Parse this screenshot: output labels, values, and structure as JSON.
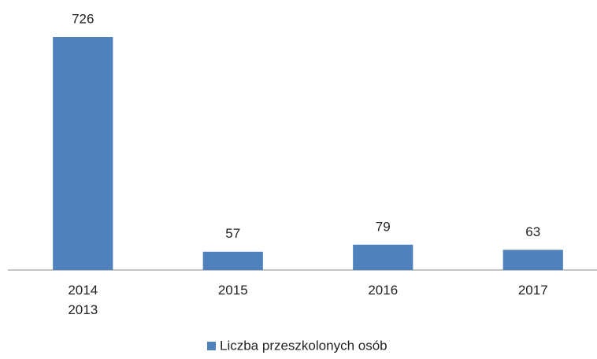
{
  "chart_data": {
    "type": "bar",
    "categories": [
      "2014\n2013",
      "2015",
      "2016",
      "2017"
    ],
    "values": [
      726,
      57,
      79,
      63
    ],
    "color": "#4f81bd",
    "legend": "bottom",
    "series_name": "Liczba przeszkolonych osób"
  }
}
